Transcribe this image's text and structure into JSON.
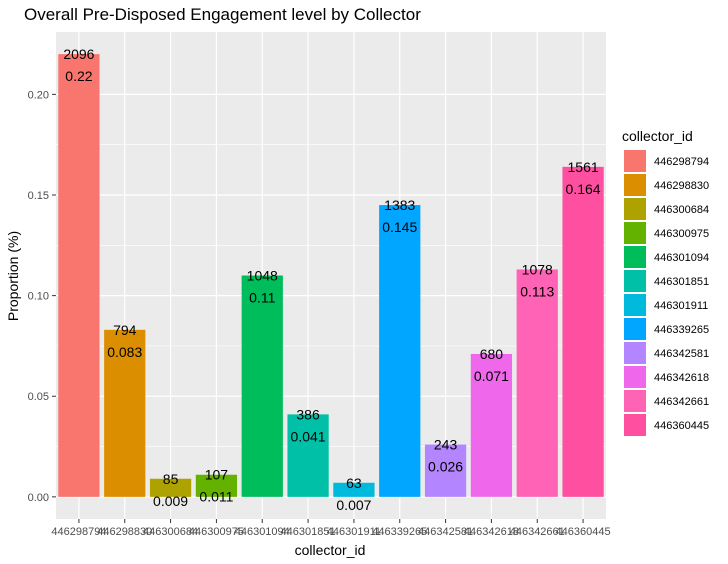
{
  "chart_data": {
    "type": "bar",
    "title": "Overall Pre-Disposed Engagement level by Collector",
    "xlabel": "collector_id",
    "ylabel": "Proportion (%)",
    "ylim": [
      -0.011,
      0.231
    ],
    "yticks": [
      0.0,
      0.05,
      0.1,
      0.15,
      0.2
    ],
    "ytick_labels": [
      "0.00",
      "0.05",
      "0.10",
      "0.15",
      "0.20"
    ],
    "categories": [
      "446298794",
      "446298830",
      "446300684",
      "446300975",
      "446301094",
      "446301851",
      "446301911",
      "446339265",
      "446342581",
      "446342618",
      "446342661",
      "446360445"
    ],
    "values": [
      0.22,
      0.083,
      0.009,
      0.011,
      0.11,
      0.041,
      0.007,
      0.145,
      0.026,
      0.071,
      0.113,
      0.164
    ],
    "value_labels": [
      "0.22",
      "0.083",
      "0.009",
      "0.011",
      "0.11",
      "0.041",
      "0.007",
      "0.145",
      "0.026",
      "0.071",
      "0.113",
      "0.164"
    ],
    "counts": [
      "2096",
      "794",
      "85",
      "107",
      "1048",
      "386",
      "63",
      "1383",
      "243",
      "680",
      "1078",
      "1561"
    ],
    "colors": [
      "#F8766D",
      "#DB8E00",
      "#AEA200",
      "#64B200",
      "#00BD5C",
      "#00C1A7",
      "#00BADE",
      "#00A6FF",
      "#B385FF",
      "#EF67EB",
      "#FF63B6",
      "#FF4FA0"
    ],
    "grid": true,
    "legend": {
      "title": "collector_id",
      "position": "right"
    }
  }
}
